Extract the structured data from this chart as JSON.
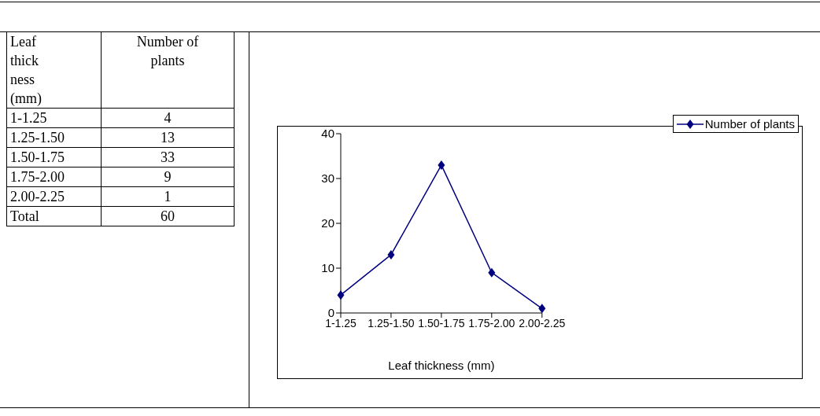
{
  "chart_data": [
    {
      "type": "other",
      "annotations": [
        "Leaf thick ness (mm)",
        "Number of plants",
        "1-1.25",
        "4",
        "1.25-1.50",
        "13",
        "1.50-1.75",
        "33",
        "1.75-2.00",
        "9",
        "2.00-2.25",
        "1",
        "Total",
        "60"
      ]
    },
    {
      "type": "line",
      "xlabel": "Leaf thickness (mm)",
      "categories": [
        "1-1.25",
        "1.25-1.50",
        "1.50-1.75",
        "1.75-2.00",
        "2.00-2.25"
      ],
      "series": [
        {
          "name": "Number of plants",
          "color": "#000080",
          "values": [
            4,
            13,
            33,
            9,
            1
          ]
        }
      ],
      "ylim": [
        0,
        40
      ],
      "yticks": [
        0,
        10,
        20,
        30,
        40
      ],
      "grid": false,
      "legend": "top right",
      "marker": "diamond",
      "line_style": "solid"
    }
  ]
}
